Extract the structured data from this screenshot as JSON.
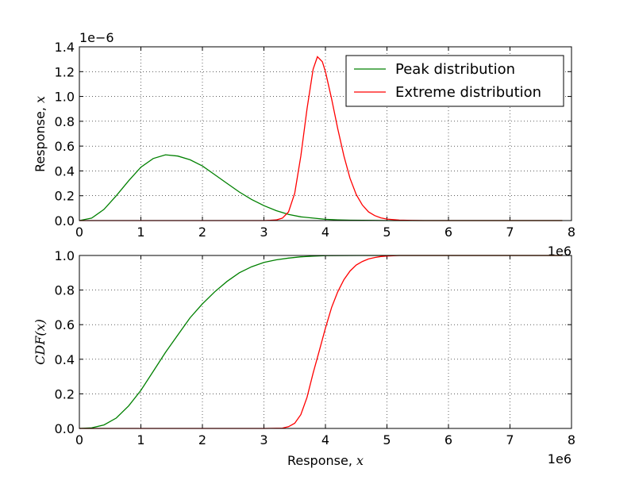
{
  "chart_data": [
    {
      "type": "line",
      "panel": "top",
      "xlabel": "",
      "ylabel_text": "Response, ",
      "ylabel_math": "x",
      "xlim": [
        0,
        8000000
      ],
      "ylim": [
        0,
        1.4e-06
      ],
      "x_tick_labels": [
        "0",
        "1",
        "2",
        "3",
        "4",
        "5",
        "6",
        "7",
        "8"
      ],
      "y_tick_labels": [
        "0.0",
        "0.2",
        "0.4",
        "0.6",
        "0.8",
        "1.0",
        "1.2",
        "1.4"
      ],
      "x_offset_label": "1e6",
      "y_offset_label": "1e−6",
      "grid": true,
      "legend_position": "top-right",
      "series": [
        {
          "name": "Peak distribution",
          "color": "#008000",
          "x": [
            0,
            200000,
            400000,
            600000,
            800000,
            1000000,
            1200000,
            1400000,
            1600000,
            1800000,
            2000000,
            2200000,
            2400000,
            2600000,
            2800000,
            3000000,
            3200000,
            3400000,
            3600000,
            3800000,
            4000000,
            4200000,
            4400000,
            4600000,
            4800000,
            5000000,
            5500000,
            6000000,
            6500000,
            7000000,
            7500000,
            7850000
          ],
          "values": [
            0.0,
            2e-08,
            9e-08,
            2e-07,
            3.2e-07,
            4.3e-07,
            5e-07,
            5.3e-07,
            5.2e-07,
            4.9e-07,
            4.4e-07,
            3.7e-07,
            3e-07,
            2.3e-07,
            1.7e-07,
            1.2e-07,
            8e-08,
            5e-08,
            3e-08,
            2e-08,
            1e-08,
            6e-09,
            3e-09,
            2e-09,
            1e-09,
            0.0,
            0.0,
            0.0,
            0.0,
            0.0,
            0.0,
            0.0
          ]
        },
        {
          "name": "Extreme distribution",
          "color": "#ff0000",
          "x": [
            0,
            1000000,
            2000000,
            3000000,
            3100000,
            3200000,
            3300000,
            3400000,
            3500000,
            3600000,
            3700000,
            3800000,
            3870000,
            3950000,
            4000000,
            4100000,
            4200000,
            4300000,
            4400000,
            4500000,
            4600000,
            4700000,
            4800000,
            4900000,
            5000000,
            5200000,
            5400000,
            5600000,
            6000000,
            7000000,
            7850000
          ],
          "values": [
            0.0,
            0.0,
            0.0,
            0.0,
            2e-09,
            5e-09,
            2e-08,
            7e-08,
            2.2e-07,
            5.2e-07,
            9e-07,
            1.22e-06,
            1.32e-06,
            1.28e-06,
            1.2e-06,
            9.8e-07,
            7.4e-07,
            5.2e-07,
            3.4e-07,
            2.1e-07,
            1.25e-07,
            7e-08,
            4e-08,
            2.2e-08,
            1.2e-08,
            4e-09,
            1e-09,
            0.0,
            0.0,
            0.0,
            0.0
          ]
        }
      ]
    },
    {
      "type": "line",
      "panel": "bottom",
      "xlabel_text": "Response, ",
      "xlabel_math": "x",
      "ylabel_math": "CDF(x)",
      "xlim": [
        0,
        8000000
      ],
      "ylim": [
        0,
        1.0
      ],
      "x_tick_labels": [
        "0",
        "1",
        "2",
        "3",
        "4",
        "5",
        "6",
        "7",
        "8"
      ],
      "y_tick_labels": [
        "0.0",
        "0.2",
        "0.4",
        "0.6",
        "0.8",
        "1.0"
      ],
      "x_offset_label": "1e6",
      "grid": true,
      "series": [
        {
          "color": "#008000",
          "x": [
            0,
            200000,
            400000,
            600000,
            800000,
            1000000,
            1200000,
            1400000,
            1600000,
            1800000,
            2000000,
            2200000,
            2400000,
            2600000,
            2800000,
            3000000,
            3200000,
            3400000,
            3600000,
            3800000,
            4000000,
            4500000,
            5000000,
            6000000,
            7000000,
            7850000
          ],
          "values": [
            0.0,
            0.003,
            0.02,
            0.06,
            0.13,
            0.22,
            0.33,
            0.44,
            0.54,
            0.64,
            0.72,
            0.79,
            0.85,
            0.9,
            0.935,
            0.96,
            0.975,
            0.985,
            0.992,
            0.996,
            0.999,
            1.0,
            1.0,
            1.0,
            1.0,
            1.0
          ]
        },
        {
          "color": "#ff0000",
          "x": [
            0,
            1000000,
            2000000,
            3000000,
            3300000,
            3400000,
            3500000,
            3600000,
            3700000,
            3800000,
            3900000,
            4000000,
            4100000,
            4200000,
            4300000,
            4400000,
            4500000,
            4600000,
            4700000,
            4800000,
            4900000,
            5000000,
            5200000,
            6000000,
            7000000,
            7850000
          ],
          "values": [
            0.0,
            0.0,
            0.0,
            0.0,
            0.002,
            0.01,
            0.03,
            0.08,
            0.18,
            0.32,
            0.45,
            0.58,
            0.7,
            0.79,
            0.86,
            0.91,
            0.945,
            0.965,
            0.98,
            0.988,
            0.994,
            0.997,
            1.0,
            1.0,
            1.0,
            1.0
          ]
        }
      ]
    }
  ]
}
